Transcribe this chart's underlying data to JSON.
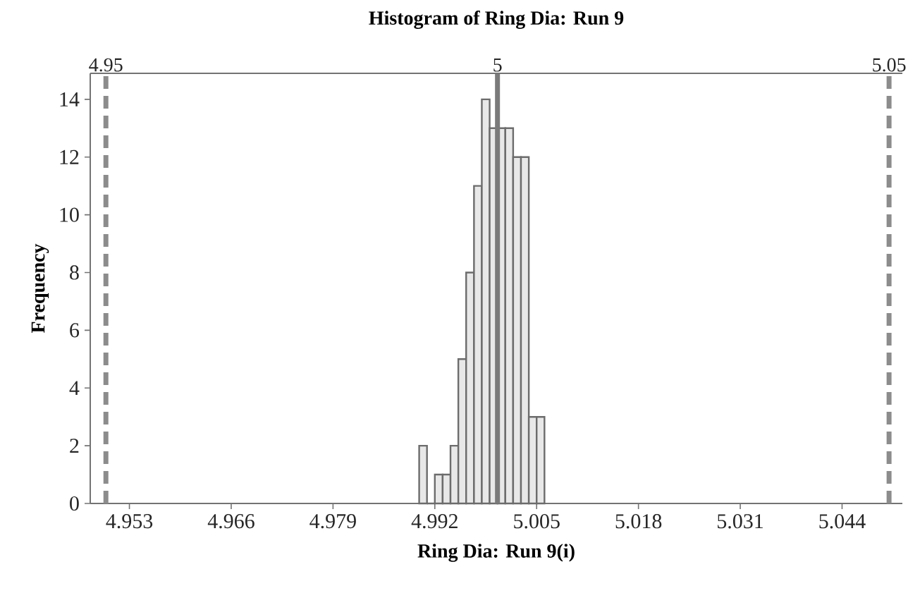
{
  "chart_data": {
    "type": "histogram",
    "title": "Histogram of Ring Dia: Run 9",
    "xlabel": "Ring Dia: Run 9(i)",
    "ylabel": "Frequency",
    "bins": [
      4.99,
      4.991,
      4.992,
      4.993,
      4.994,
      4.995,
      4.996,
      4.997,
      4.998,
      4.999,
      5.0,
      5.001,
      5.002,
      5.003,
      5.004,
      5.005,
      5.006
    ],
    "values": [
      2,
      0,
      1,
      1,
      2,
      5,
      8,
      11,
      14,
      13,
      13,
      13,
      12,
      12,
      3,
      3
    ],
    "color": "#e8e8e8",
    "xlim": [
      4.948,
      5.0517
    ],
    "ylim": [
      0,
      14.9
    ],
    "xticks": [
      4.953,
      4.966,
      4.979,
      4.992,
      5.005,
      5.018,
      5.031,
      5.044
    ],
    "yticks": [
      0,
      2,
      4,
      6,
      8,
      10,
      12,
      14
    ],
    "ref_lines": [
      {
        "axis": "x",
        "value": 4.95,
        "label": "4.95",
        "line_style": "dashed",
        "color": "#8c8c8c"
      },
      {
        "axis": "x",
        "value": 5,
        "label": "5",
        "line_style": "solid",
        "color": "#7a7a7a"
      },
      {
        "axis": "x",
        "value": 5.05,
        "label": "5.05",
        "line_style": "dashed",
        "color": "#8c8c8c"
      }
    ],
    "grid": false
  }
}
